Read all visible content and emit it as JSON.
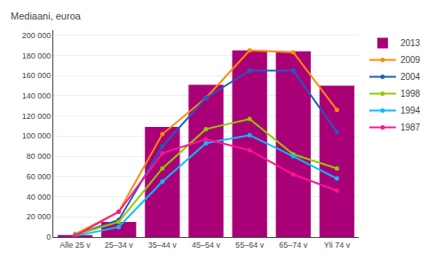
{
  "chart_data": {
    "type": "bar",
    "ylabel": "Mediaani, euroa",
    "categories": [
      "Alle 25 v",
      "25–34 v",
      "35–44 v",
      "45–54 v",
      "55–64 v",
      "65–74 v",
      "Yli 74 v"
    ],
    "series": [
      {
        "name": "2013",
        "type": "bar",
        "color": "#AA0077",
        "values": [
          2000,
          15000,
          109000,
          151000,
          185000,
          184000,
          150000
        ]
      },
      {
        "name": "2009",
        "type": "line",
        "color": "#FF8C00",
        "marker": "circle",
        "values": [
          3000,
          25000,
          102000,
          138000,
          185000,
          183000,
          126000
        ]
      },
      {
        "name": "2004",
        "type": "line",
        "color": "#1F5BC4",
        "marker": "circle",
        "values": [
          2000,
          17000,
          90000,
          138000,
          165000,
          165000,
          104000
        ]
      },
      {
        "name": "1998",
        "type": "line",
        "color": "#92C800",
        "marker": "circle",
        "values": [
          2000,
          15000,
          68000,
          107000,
          117000,
          82000,
          68000
        ]
      },
      {
        "name": "1994",
        "type": "line",
        "color": "#00BFFF",
        "marker": "circle",
        "values": [
          1000,
          10000,
          55000,
          93000,
          101000,
          80000,
          58000
        ]
      },
      {
        "name": "1987",
        "type": "line",
        "color": "#FF1493",
        "marker": "circle",
        "values": [
          1000,
          25000,
          83000,
          97000,
          86000,
          62000,
          46000
        ]
      }
    ],
    "ylim": [
      0,
      205000
    ],
    "yticks": [
      0,
      {
        "value": 20000,
        "label": "20 000"
      },
      {
        "value": 40000,
        "label": "40 000"
      },
      {
        "value": 60000,
        "label": "60 000"
      },
      {
        "value": 80000,
        "label": "80 000"
      },
      {
        "value": 100000,
        "label": "100 000"
      },
      {
        "value": 120000,
        "label": "120 000"
      },
      {
        "value": 140000,
        "label": "140 000"
      },
      {
        "value": 160000,
        "label": "160 000"
      },
      {
        "value": 180000,
        "label": "180 000"
      },
      {
        "value": 200000,
        "label": "200 000"
      }
    ],
    "grid": true,
    "legend": "right"
  }
}
